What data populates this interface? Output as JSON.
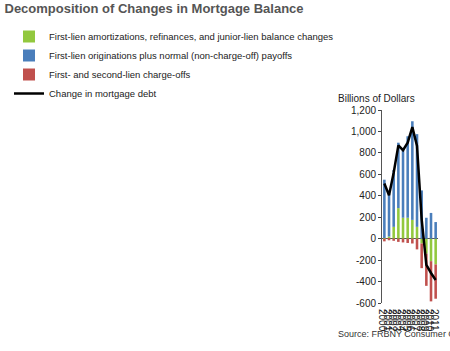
{
  "chart_data": {
    "type": "bar",
    "title": "Decomposition of Changes in Mortgage Balance",
    "y_label": "Billions of Dollars",
    "source": "Source: FRBNY Consumer Credit Panel/Equifax.",
    "categories": [
      "2000",
      "2001",
      "2002",
      "2003",
      "2004",
      "2005",
      "2006",
      "2007",
      "2008",
      "2009",
      "2010",
      "2011"
    ],
    "series": [
      {
        "name": "First-lien amortizations, refinances, and junior-lien balance changes",
        "type": "bar",
        "color": "#92c83e",
        "values": [
          5,
          20,
          110,
          285,
          195,
          195,
          175,
          110,
          -45,
          -140,
          -210,
          -240
        ]
      },
      {
        "name": "First-lien originations plus normal (non-charge-off) payoffs",
        "type": "bar",
        "color": "#4a7ebb",
        "values": [
          545,
          400,
          530,
          610,
          650,
          760,
          920,
          865,
          450,
          195,
          240,
          155
        ]
      },
      {
        "name": "First- and second-lien charge-offs",
        "type": "bar",
        "color": "#c0504d",
        "values": [
          -25,
          -15,
          -20,
          -30,
          -35,
          -40,
          -45,
          -100,
          -230,
          -300,
          -375,
          -320
        ]
      },
      {
        "name": "Change in mortgage debt",
        "type": "line",
        "color": "#000000",
        "values": [
          515,
          405,
          615,
          870,
          825,
          895,
          1040,
          865,
          180,
          -245,
          -320,
          -385
        ]
      }
    ],
    "ylim": [
      -600,
      1200
    ],
    "yticks": [
      -600,
      -400,
      -200,
      0,
      200,
      400,
      600,
      800,
      {
        "value": 1000,
        "label": "1,000"
      },
      {
        "value": 1200,
        "label": "1,200"
      }
    ],
    "stacked": true,
    "grid": false,
    "legend": "top left"
  }
}
